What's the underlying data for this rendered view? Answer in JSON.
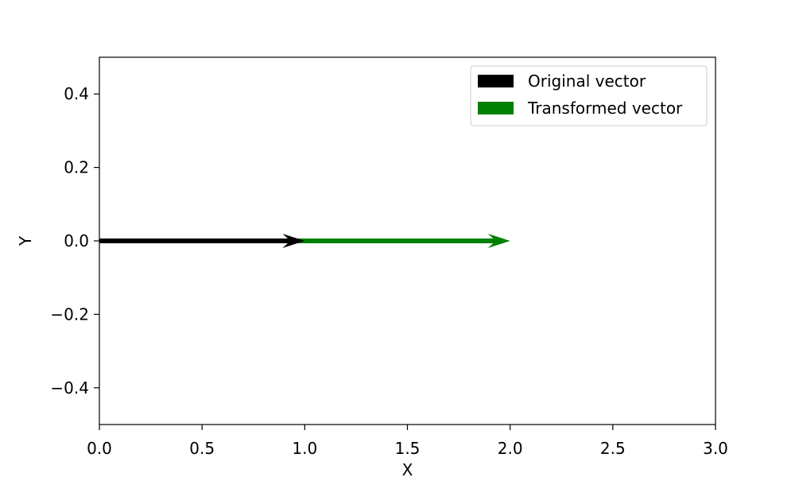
{
  "chart_data": {
    "type": "quiver",
    "xlabel": "X",
    "ylabel": "Y",
    "xlim": [
      0.0,
      3.0
    ],
    "ylim": [
      -0.5,
      0.5
    ],
    "xticks": [
      "0.0",
      "0.5",
      "1.0",
      "1.5",
      "2.0",
      "2.5",
      "3.0"
    ],
    "yticks": [
      "0.4",
      "0.2",
      "0.0",
      "−0.2",
      "−0.4"
    ],
    "grid": false,
    "legend_position": "top-right",
    "series": [
      {
        "name": "Original vector",
        "color": "#000000",
        "start": [
          0,
          0
        ],
        "end": [
          1,
          0
        ]
      },
      {
        "name": "Transformed vector",
        "color": "#008000",
        "start": [
          0,
          0
        ],
        "end": [
          2,
          0
        ]
      }
    ]
  }
}
